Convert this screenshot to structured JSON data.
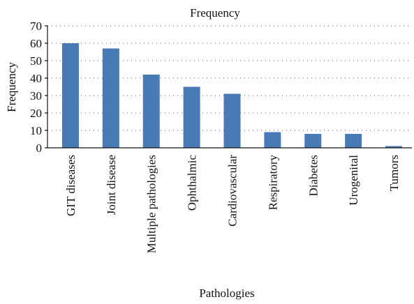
{
  "chart_data": {
    "type": "bar",
    "title": "Frequency",
    "y_label": "Frequency",
    "x_label": "Pathologies",
    "categories": [
      "GIT diseases",
      "Joint disease",
      "Multiple pathologies",
      "Ophthalmic",
      "Cardiovascular",
      "Respiratory",
      "Diabetes",
      "Urogenital",
      "Tumors"
    ],
    "values": [
      60,
      57,
      42,
      35,
      31,
      9,
      8,
      8,
      1
    ],
    "color": "#4a7ab5",
    "ylim": [
      0,
      70
    ],
    "yticks": [
      0,
      10,
      20,
      30,
      40,
      50,
      60,
      70
    ],
    "grid": true
  }
}
